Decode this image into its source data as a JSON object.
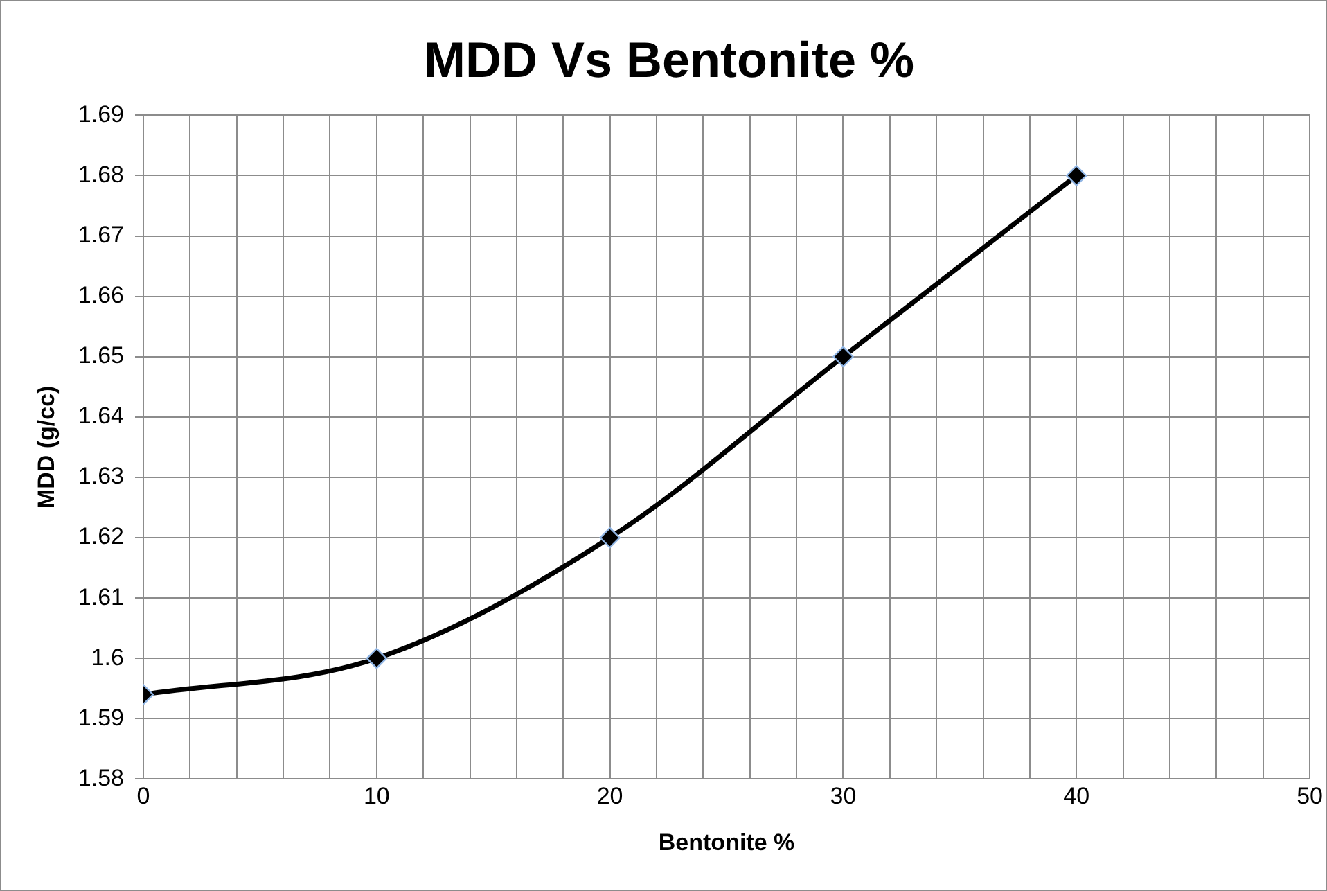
{
  "chart_data": {
    "type": "line",
    "title": "MDD Vs Bentonite %",
    "xlabel": "Bentonite %",
    "ylabel": "MDD (g/cc)",
    "series": [
      {
        "color": "#000000",
        "x": [
          0,
          10,
          20,
          30,
          40
        ],
        "values": [
          1.594,
          1.6,
          1.62,
          1.65,
          1.68
        ]
      }
    ],
    "xlim": [
      0,
      50
    ],
    "xticks": [
      0,
      {
        "value": 2,
        "label": null
      },
      {
        "value": 4,
        "label": null
      },
      {
        "value": 6,
        "label": null
      },
      {
        "value": 8,
        "label": null
      },
      10,
      {
        "value": 12,
        "label": null
      },
      {
        "value": 14,
        "label": null
      },
      {
        "value": 16,
        "label": null
      },
      {
        "value": 18,
        "label": null
      },
      20,
      {
        "value": 22,
        "label": null
      },
      {
        "value": 24,
        "label": null
      },
      {
        "value": 26,
        "label": null
      },
      {
        "value": 28,
        "label": null
      },
      30,
      {
        "value": 32,
        "label": null
      },
      {
        "value": 34,
        "label": null
      },
      {
        "value": 36,
        "label": null
      },
      {
        "value": 38,
        "label": null
      },
      40,
      {
        "value": 42,
        "label": null
      },
      {
        "value": 44,
        "label": null
      },
      {
        "value": 46,
        "label": null
      },
      {
        "value": 48,
        "label": null
      },
      50
    ],
    "ylim": [
      1.58,
      1.69
    ],
    "yticks": [
      1.58,
      1.59,
      1.6,
      1.61,
      1.62,
      1.63,
      1.64,
      1.65,
      1.66,
      1.67,
      1.68,
      1.69
    ],
    "grid": true,
    "legend": false,
    "marker": "diamond",
    "line_style": "solid"
  }
}
